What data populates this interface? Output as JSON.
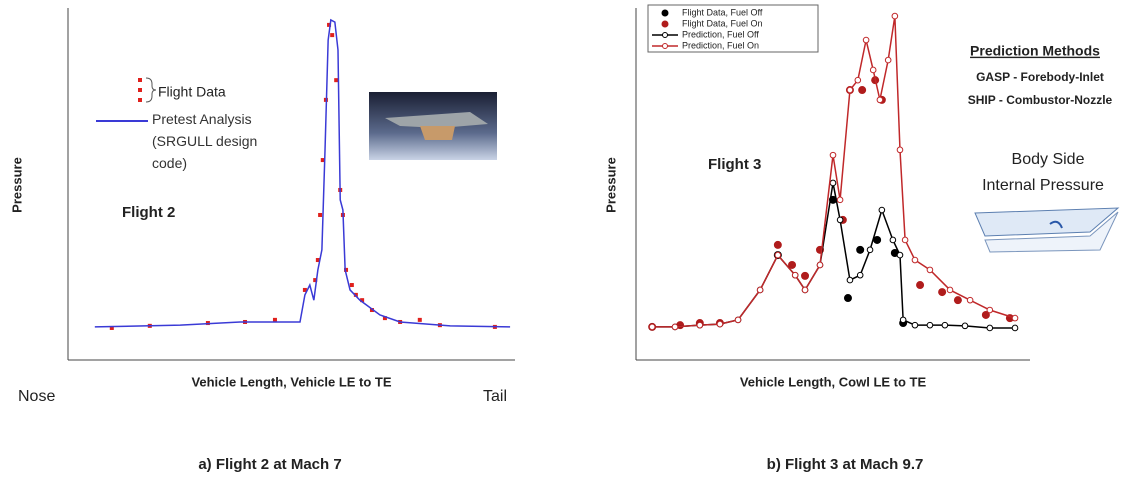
{
  "chart_data": [
    {
      "type": "line",
      "y_label": "Pressure",
      "x_label": "Vehicle Length, Vehicle LE to TE",
      "axis_end_labels": [
        "Nose",
        "Tail"
      ],
      "annotations": [
        "Flight 2"
      ],
      "caption": "a) Flight 2 at Mach 7",
      "xlim": [
        0,
        100
      ],
      "ylim": [
        0,
        100
      ],
      "series": [
        {
          "name": "Flight Data",
          "color": "#e0201c",
          "mode": "markers",
          "marker": "square",
          "x": [
            9.8,
            18.3,
            31.3,
            39.6,
            46.3,
            53.0,
            55.3,
            55.9,
            56.4,
            57.0,
            57.7,
            58.4,
            59.1,
            60.0,
            60.9,
            61.5,
            62.2,
            63.5,
            64.4,
            65.8,
            68.0,
            70.9,
            74.3,
            78.7,
            83.2,
            95.5
          ],
          "values": [
            9.1,
            9.7,
            10.5,
            10.8,
            11.4,
            19.9,
            22.7,
            28.4,
            41.2,
            56.8,
            73.9,
            95.2,
            92.3,
            79.5,
            48.3,
            41.2,
            25.6,
            21.3,
            18.5,
            17.0,
            14.2,
            11.9,
            10.8,
            11.4,
            9.9,
            9.4
          ]
        },
        {
          "name": "Pretest Analysis (SRGULL design code)",
          "color": "#3a3ad6",
          "mode": "line",
          "x": [
            6.0,
            25.1,
            38.5,
            51.9,
            53.0,
            54.1,
            55.0,
            55.9,
            56.8,
            57.5,
            58.2,
            58.8,
            59.7,
            60.4,
            60.9,
            61.5,
            62.0,
            63.1,
            65.3,
            69.8,
            74.3,
            85.5,
            98.9
          ],
          "values": [
            9.4,
            9.9,
            10.8,
            10.8,
            18.5,
            21.3,
            17.0,
            25.6,
            31.3,
            59.7,
            90.9,
            96.6,
            96.0,
            88.1,
            45.5,
            42.6,
            25.6,
            19.9,
            17.0,
            12.8,
            10.8,
            9.7,
            9.4
          ]
        }
      ]
    },
    {
      "type": "line",
      "y_label": "Pressure",
      "x_label": "Vehicle Length, Cowl LE to TE",
      "annotations": [
        "Flight 3",
        "Prediction Methods",
        "GASP - Forebody-Inlet",
        "SHIP - Combustor-Nozzle",
        "Body Side",
        "Internal Pressure"
      ],
      "caption": "b) Flight 3 at Mach 9.7",
      "xlim": [
        0,
        100
      ],
      "ylim": [
        0,
        100
      ],
      "series": [
        {
          "name": "Flight Data, Fuel Off",
          "color": "#000000",
          "mode": "markers",
          "marker": "circle",
          "x": [
            36.0,
            50.0,
            53.8,
            56.9,
            61.2,
            65.7,
            67.8
          ],
          "values": [
            29.8,
            45.5,
            17.6,
            31.3,
            34.1,
            30.4,
            10.5
          ]
        },
        {
          "name": "Flight Data, Fuel On",
          "color": "#b01c1c",
          "mode": "markers",
          "marker": "circle",
          "x": [
            4.1,
            11.2,
            16.2,
            21.3,
            36.0,
            39.6,
            42.9,
            46.7,
            52.5,
            54.3,
            57.4,
            60.7,
            62.4,
            72.1,
            77.7,
            81.7,
            88.8,
            94.9
          ],
          "values": [
            9.4,
            9.9,
            10.5,
            10.5,
            32.7,
            27.0,
            23.9,
            31.3,
            39.8,
            76.7,
            76.7,
            79.5,
            73.9,
            21.3,
            19.3,
            17.0,
            12.8,
            11.9
          ]
        },
        {
          "name": "Prediction, Fuel Off",
          "color": "#000000",
          "mode": "line+markers",
          "marker": "open-circle",
          "x": [
            4.1,
            9.9,
            16.2,
            21.3,
            25.9,
            31.5,
            36.0,
            40.4,
            42.9,
            46.7,
            50.0,
            51.8,
            54.3,
            56.9,
            59.4,
            62.4,
            65.2,
            67.0,
            67.8,
            70.8,
            74.6,
            78.4,
            83.5,
            89.8,
            96.2
          ],
          "values": [
            9.4,
            9.4,
            9.9,
            10.2,
            11.4,
            19.9,
            29.8,
            24.1,
            19.9,
            27.0,
            50.3,
            39.8,
            22.7,
            24.1,
            31.3,
            42.6,
            34.1,
            29.8,
            11.4,
            9.9,
            9.9,
            9.9,
            9.7,
            9.1,
            9.1
          ]
        },
        {
          "name": "Prediction, Fuel On",
          "color": "#c0282a",
          "mode": "line+markers",
          "marker": "open-circle",
          "x": [
            4.1,
            9.9,
            16.2,
            21.3,
            25.9,
            31.5,
            36.0,
            40.4,
            42.9,
            46.7,
            50.0,
            51.8,
            54.3,
            56.3,
            58.4,
            60.2,
            61.9,
            64.0,
            65.7,
            67.0,
            68.3,
            70.8,
            74.6,
            79.7,
            84.8,
            89.8,
            96.2
          ],
          "values": [
            9.4,
            9.4,
            9.9,
            10.2,
            11.4,
            19.9,
            29.8,
            24.1,
            19.9,
            27.0,
            58.2,
            45.5,
            76.7,
            79.5,
            90.9,
            82.4,
            73.9,
            85.2,
            97.7,
            59.7,
            34.1,
            28.4,
            25.6,
            19.9,
            17.0,
            14.2,
            11.9
          ]
        }
      ]
    }
  ]
}
